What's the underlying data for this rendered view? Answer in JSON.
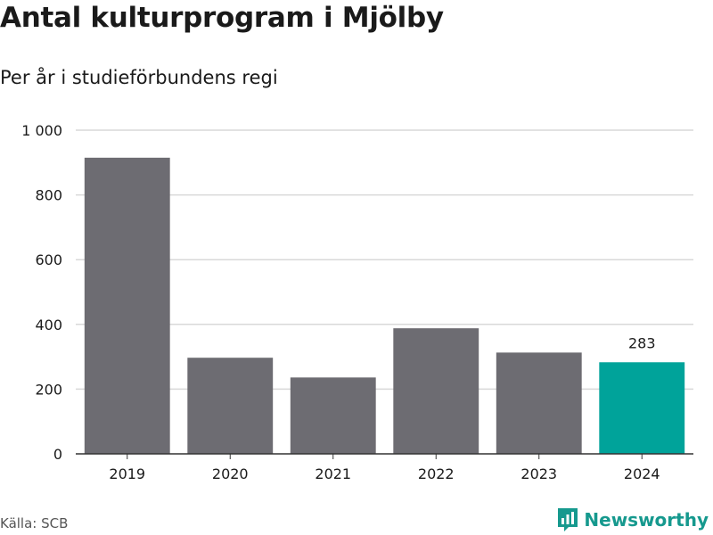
{
  "title": "Antal kulturprogram i Mjölby",
  "subtitle": "Per år i studieförbundens regi",
  "source": "Källa: SCB",
  "brand": {
    "name": "Newsworthy",
    "icon": "newsworthy-logo-icon",
    "color": "#16998e"
  },
  "colors": {
    "bar": "#6d6c72",
    "highlight": "#00a39a",
    "grid": "#d9d9d9",
    "axis": "#333333"
  },
  "chart_data": {
    "type": "bar",
    "title": "Antal kulturprogram i Mjölby",
    "subtitle": "Per år i studieförbundens regi",
    "xlabel": "",
    "ylabel": "",
    "categories": [
      "2019",
      "2020",
      "2021",
      "2022",
      "2023",
      "2024"
    ],
    "values": [
      915,
      297,
      236,
      388,
      313,
      283
    ],
    "ylim": [
      0,
      1000
    ],
    "yticks": [
      0,
      200,
      400,
      600,
      800,
      1000
    ],
    "ytick_labels": [
      "0",
      "200",
      "400",
      "600",
      "800",
      "1 000"
    ],
    "highlight_index": 5,
    "data_labels": [
      {
        "index": 5,
        "text": "283"
      }
    ],
    "grid": true,
    "legend": "none"
  }
}
